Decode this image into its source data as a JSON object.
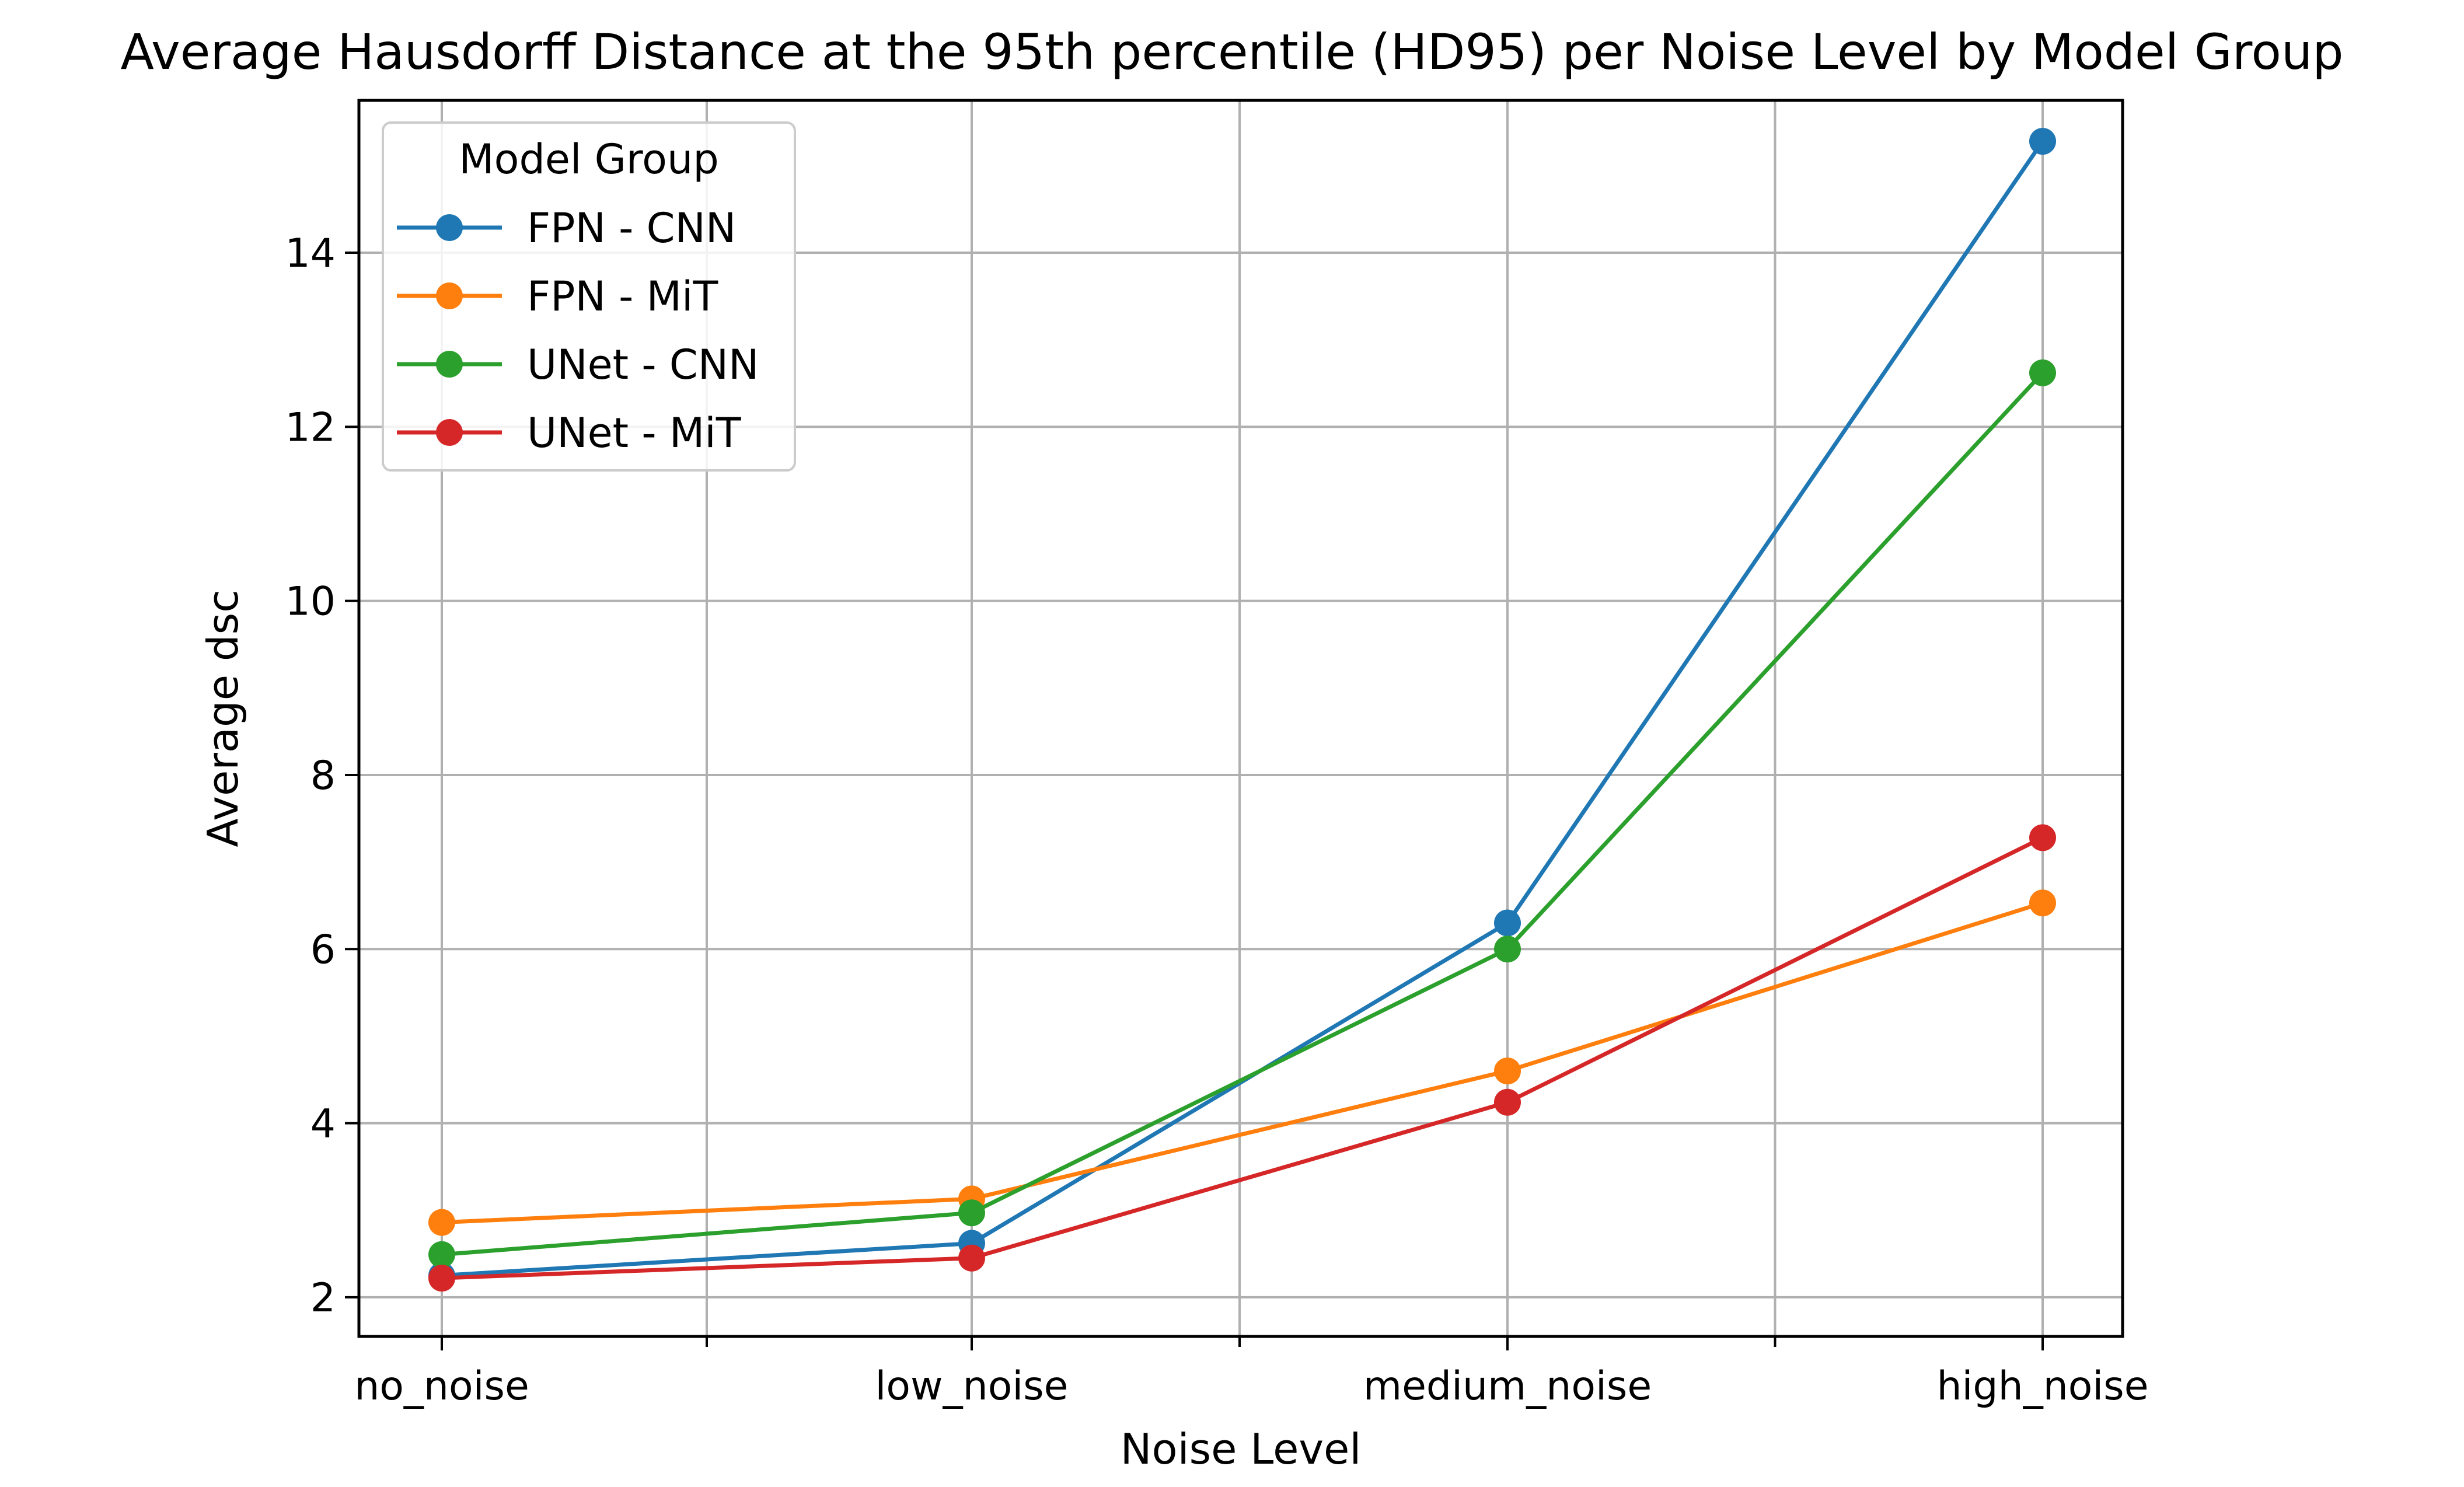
{
  "chart_data": {
    "type": "line",
    "title": "Average Hausdorff Distance at the 95th percentile (HD95) per Noise Level by Model Group",
    "xlabel": "Noise Level",
    "ylabel": "Average dsc",
    "categories": [
      "no_noise",
      "low_noise",
      "medium_noise",
      "high_noise"
    ],
    "ylim": [
      1.55,
      15.75
    ],
    "yticks": [
      2,
      4,
      6,
      8,
      10,
      12,
      14
    ],
    "grid": true,
    "legend": {
      "title": "Model Group",
      "position": "top-left"
    },
    "series": [
      {
        "name": "FPN - CNN",
        "color": "#1f77b4",
        "values": [
          2.25,
          2.62,
          6.3,
          15.28
        ]
      },
      {
        "name": "FPN - MiT",
        "color": "#ff7f0e",
        "values": [
          2.86,
          3.13,
          4.6,
          6.53
        ]
      },
      {
        "name": "UNet - CNN",
        "color": "#2ca02c",
        "values": [
          2.49,
          2.97,
          6.0,
          12.62
        ]
      },
      {
        "name": "UNet - MiT",
        "color": "#d62728",
        "values": [
          2.22,
          2.45,
          4.24,
          7.28
        ]
      }
    ]
  }
}
